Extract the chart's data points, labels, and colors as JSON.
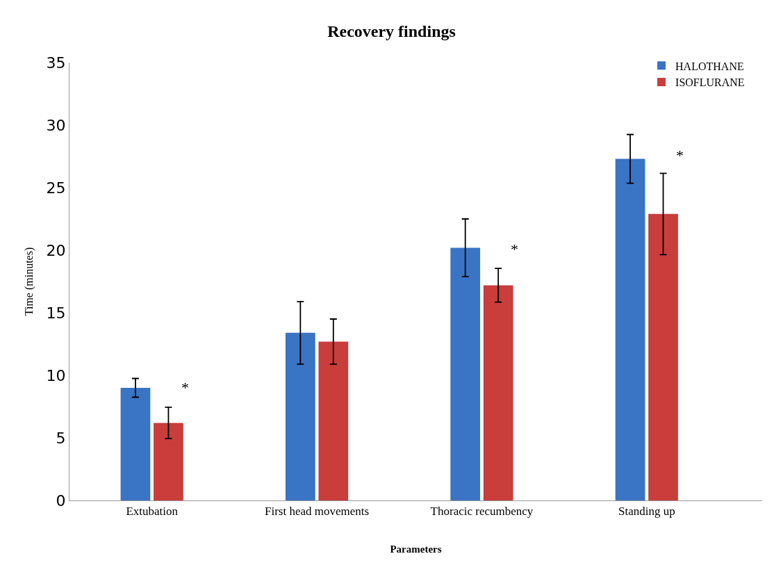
{
  "chart_data": {
    "type": "bar",
    "title": "Recovery findings",
    "xlabel": "Parameters",
    "ylabel": "Time (minutes)",
    "categories": [
      "Extubation",
      "First head movements",
      "Thoracic recumbency",
      "Standing up"
    ],
    "series": [
      {
        "name": "HALOTHANE",
        "color": "#3a74c4",
        "values": [
          9.0,
          13.4,
          20.2,
          27.3
        ],
        "errors": [
          0.75,
          2.5,
          2.3,
          1.95
        ]
      },
      {
        "name": "ISOFLURANE",
        "color": "#c93d3b",
        "values": [
          6.2,
          12.7,
          17.2,
          22.9
        ],
        "errors": [
          1.25,
          1.8,
          1.35,
          3.25
        ]
      }
    ],
    "annotations": [
      {
        "text": "*",
        "x": "Extubation",
        "y": 8.2
      },
      {
        "text": "*",
        "x": "Thoracic recumbency",
        "y": 19.3
      },
      {
        "text": "*",
        "x": "Standing up",
        "y": 26.8
      }
    ],
    "ylim": [
      0,
      35
    ],
    "yticks": [
      0,
      5,
      10,
      15,
      20,
      25,
      30,
      35
    ],
    "grid": false,
    "legend": "top right"
  }
}
